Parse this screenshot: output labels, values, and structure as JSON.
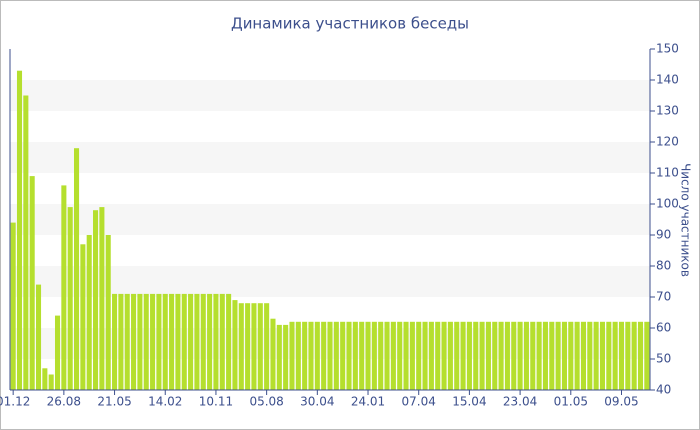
{
  "chart_data": {
    "type": "bar",
    "title": "Динамика участников беседы",
    "y_label": "Число участников",
    "categories": [
      "01.12",
      null,
      null,
      null,
      null,
      null,
      null,
      null,
      "26.08",
      null,
      null,
      null,
      null,
      null,
      null,
      null,
      "21.05",
      null,
      null,
      null,
      null,
      null,
      null,
      null,
      "14.02",
      null,
      null,
      null,
      null,
      null,
      null,
      null,
      "10.11",
      null,
      null,
      null,
      null,
      null,
      null,
      null,
      "05.08",
      null,
      null,
      null,
      null,
      null,
      null,
      null,
      "30.04",
      null,
      null,
      null,
      null,
      null,
      null,
      null,
      "24.01",
      null,
      null,
      null,
      null,
      null,
      null,
      null,
      "07.04",
      null,
      null,
      null,
      null,
      null,
      null,
      null,
      "15.04",
      null,
      null,
      null,
      null,
      null,
      null,
      null,
      "23.04",
      null,
      null,
      null,
      null,
      null,
      null,
      null,
      "01.05",
      null,
      null,
      null,
      null,
      null,
      null,
      null,
      "09.05",
      null,
      null,
      null,
      null
    ],
    "values": [
      94,
      143,
      135,
      109,
      74,
      47,
      45,
      64,
      106,
      99,
      118,
      87,
      90,
      98,
      99,
      90,
      71,
      71,
      71,
      71,
      71,
      71,
      71,
      71,
      71,
      71,
      71,
      71,
      71,
      71,
      71,
      71,
      71,
      71,
      71,
      69,
      68,
      68,
      68,
      68,
      68,
      63,
      61,
      61,
      62,
      62,
      62,
      62,
      62,
      62,
      62,
      62,
      62,
      62,
      62,
      62,
      62,
      62,
      62,
      62,
      62,
      62,
      62,
      62,
      62,
      62,
      62,
      62,
      62,
      62,
      62,
      62,
      62,
      62,
      62,
      62,
      62,
      62,
      62,
      62,
      62,
      62,
      62,
      62,
      62,
      62,
      62,
      62,
      62,
      62,
      62,
      62,
      62,
      62,
      62,
      62,
      62,
      62,
      62,
      62,
      62
    ],
    "color": "#b5df2e",
    "ylim": [
      40,
      150
    ],
    "yticks": [
      40,
      50,
      60,
      70,
      80,
      90,
      100,
      110,
      120,
      130,
      140,
      150
    ],
    "grid": "bands",
    "y_axis_side": "right"
  }
}
